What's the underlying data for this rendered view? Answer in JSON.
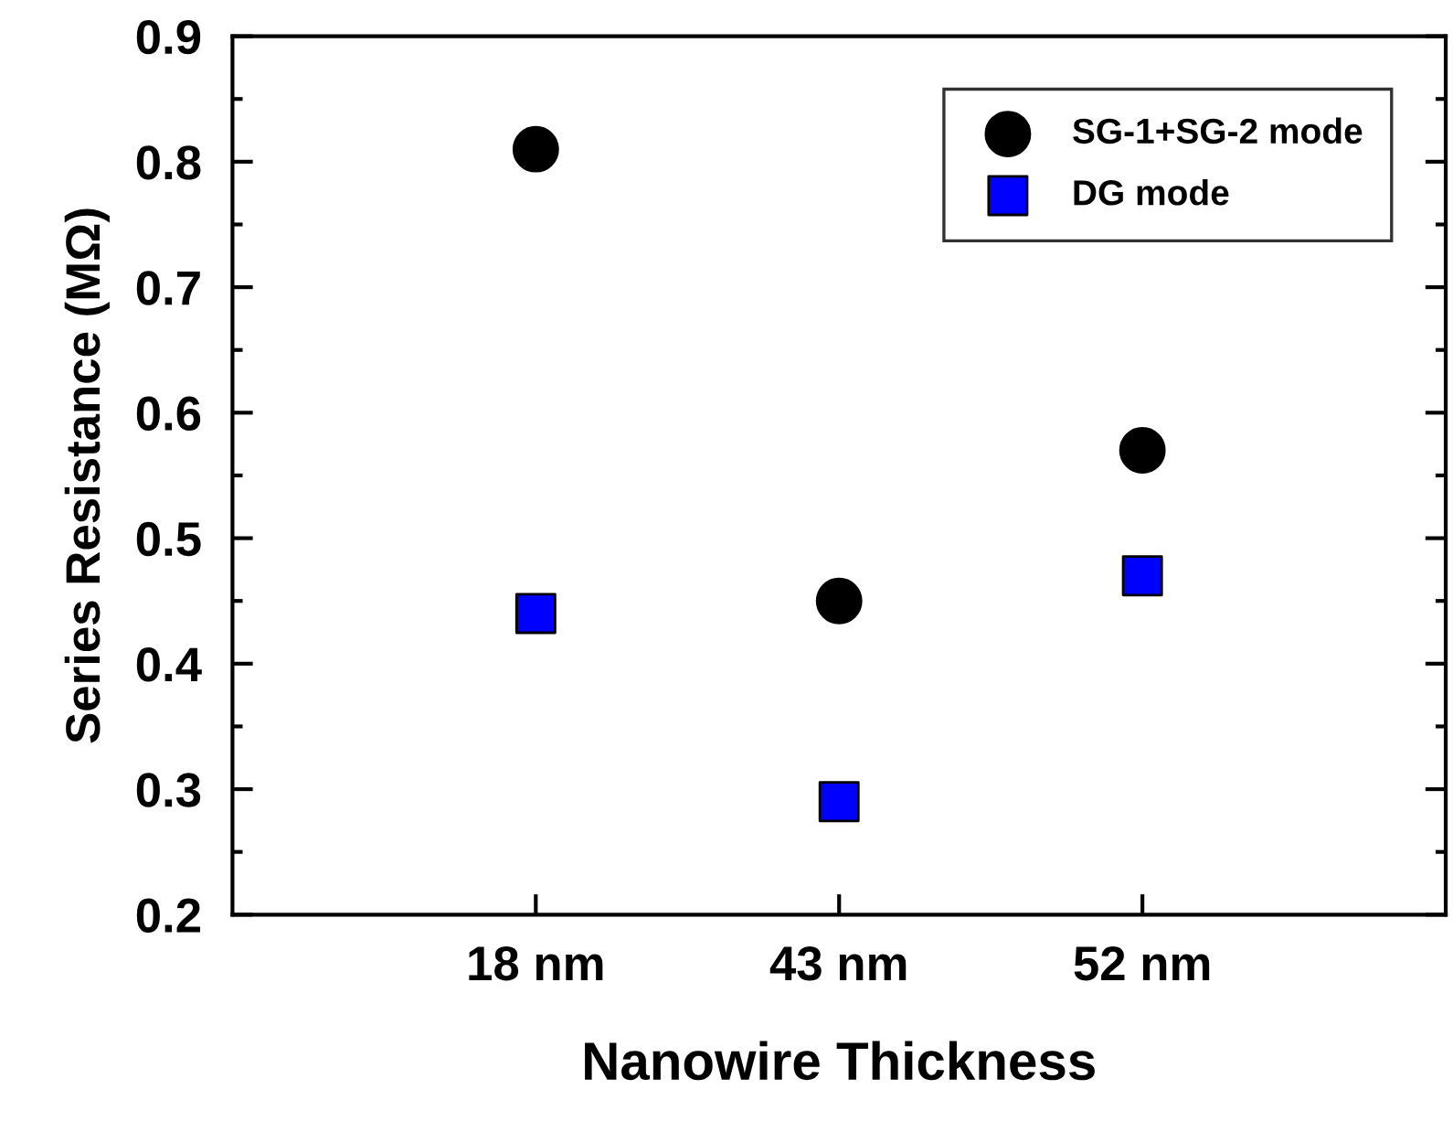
{
  "chart_data": {
    "type": "scatter",
    "xlabel": "Nanowire Thickness",
    "ylabel": "Series Resistance (MΩ)",
    "categories": [
      "18 nm",
      "43 nm",
      "52 nm"
    ],
    "series": [
      {
        "name": "SG-1+SG-2 mode",
        "color": "#000000",
        "marker": "circle",
        "values": [
          0.81,
          0.45,
          0.57
        ]
      },
      {
        "name": "DG mode",
        "color": "#0000ff",
        "marker": "square",
        "values": [
          0.44,
          0.29,
          0.47
        ]
      }
    ],
    "ylim": [
      0.2,
      0.9
    ],
    "yticks": [
      0.2,
      0.3,
      0.4,
      0.5,
      0.6,
      0.7,
      0.8,
      0.9
    ],
    "grid": false,
    "legend": "top right"
  }
}
